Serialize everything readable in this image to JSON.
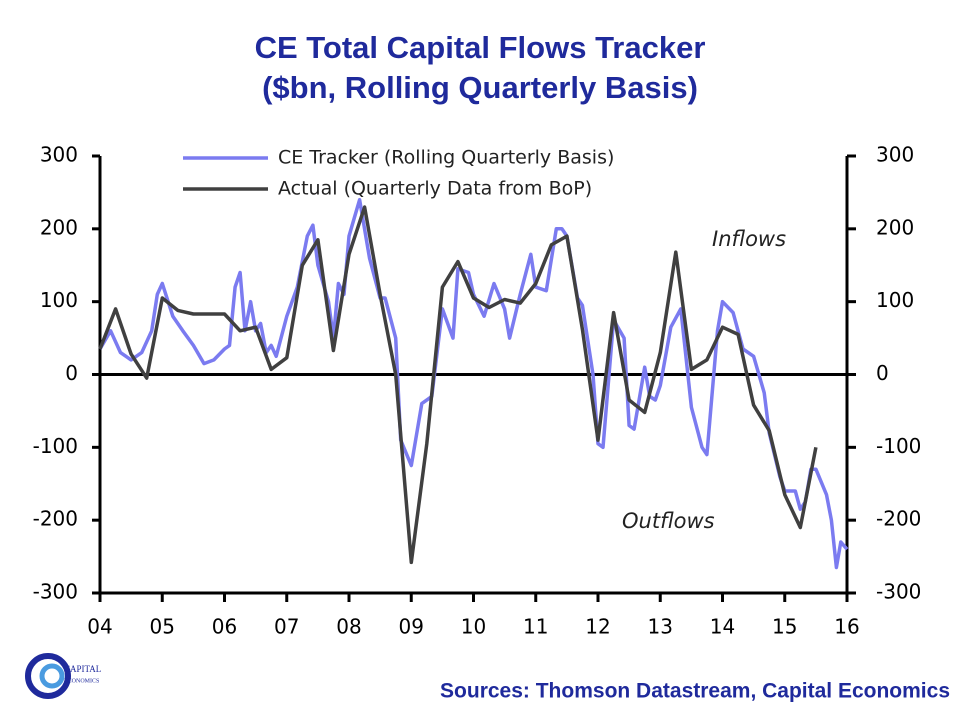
{
  "chart_data": {
    "type": "line",
    "title": [
      "CE Total Capital Flows Tracker",
      "($bn, Rolling Quarterly Basis)"
    ],
    "source": "Sources: Thomson Datastream, Capital Economics",
    "logo": [
      "CAPITAL",
      "ECONOMICS"
    ],
    "annotations": [
      "Inflows",
      "Outflows"
    ],
    "xlim": [
      2004,
      2016
    ],
    "xticks": [
      {
        "value": 2004,
        "label": "04"
      },
      {
        "value": 2005,
        "label": "05"
      },
      {
        "value": 2006,
        "label": "06"
      },
      {
        "value": 2007,
        "label": "07"
      },
      {
        "value": 2008,
        "label": "08"
      },
      {
        "value": 2009,
        "label": "09"
      },
      {
        "value": 2010,
        "label": "10"
      },
      {
        "value": 2011,
        "label": "11"
      },
      {
        "value": 2012,
        "label": "12"
      },
      {
        "value": 2013,
        "label": "13"
      },
      {
        "value": 2014,
        "label": "14"
      },
      {
        "value": 2015,
        "label": "15"
      },
      {
        "value": 2016,
        "label": "16"
      }
    ],
    "ylim": [
      -300,
      300
    ],
    "yticks": [
      -300,
      -200,
      -100,
      0,
      100,
      200,
      300
    ],
    "y2lim": [
      -300,
      300
    ],
    "y2ticks": [
      -300,
      -200,
      -100,
      0,
      100,
      200,
      300
    ],
    "series": [
      {
        "name": "CE Tracker (Rolling Quarterly Basis)",
        "color": "#7b7bf0",
        "x": [
          2004.0,
          2004.17,
          2004.33,
          2004.5,
          2004.67,
          2004.83,
          2004.92,
          2005.0,
          2005.17,
          2005.33,
          2005.5,
          2005.67,
          2005.83,
          2006.0,
          2006.08,
          2006.17,
          2006.25,
          2006.33,
          2006.42,
          2006.5,
          2006.58,
          2006.67,
          2006.75,
          2006.83,
          2007.0,
          2007.17,
          2007.33,
          2007.42,
          2007.5,
          2007.67,
          2007.75,
          2007.83,
          2007.92,
          2008.0,
          2008.17,
          2008.33,
          2008.5,
          2008.58,
          2008.75,
          2008.83,
          2009.0,
          2009.17,
          2009.33,
          2009.5,
          2009.67,
          2009.75,
          2009.92,
          2010.0,
          2010.17,
          2010.33,
          2010.5,
          2010.58,
          2010.75,
          2010.92,
          2011.0,
          2011.17,
          2011.33,
          2011.42,
          2011.5,
          2011.67,
          2011.75,
          2011.92,
          2012.0,
          2012.08,
          2012.25,
          2012.42,
          2012.5,
          2012.58,
          2012.75,
          2012.83,
          2012.92,
          2013.0,
          2013.17,
          2013.33,
          2013.5,
          2013.67,
          2013.75,
          2013.92,
          2014.0,
          2014.17,
          2014.33,
          2014.5,
          2014.67,
          2014.75,
          2014.92,
          2015.0,
          2015.17,
          2015.25,
          2015.33,
          2015.42,
          2015.5,
          2015.67,
          2015.75,
          2015.83,
          2015.9,
          2016.0
        ],
        "values": [
          35,
          60,
          30,
          20,
          30,
          60,
          110,
          125,
          80,
          60,
          40,
          15,
          20,
          35,
          40,
          120,
          140,
          60,
          100,
          60,
          70,
          30,
          40,
          25,
          80,
          120,
          190,
          205,
          150,
          100,
          50,
          125,
          110,
          190,
          240,
          160,
          105,
          105,
          50,
          -90,
          -125,
          -40,
          -30,
          90,
          50,
          145,
          140,
          110,
          80,
          125,
          90,
          50,
          110,
          165,
          120,
          115,
          200,
          200,
          190,
          105,
          95,
          0,
          -95,
          -100,
          75,
          50,
          -70,
          -75,
          10,
          -30,
          -35,
          -15,
          65,
          90,
          -45,
          -100,
          -110,
          60,
          100,
          85,
          35,
          25,
          -25,
          -80,
          -140,
          -160,
          -160,
          -185,
          -175,
          -130,
          -130,
          -165,
          -200,
          -265,
          -230,
          -240
        ]
      },
      {
        "name": "Actual (Quarterly Data from BoP)",
        "color": "#404040",
        "x": [
          2004.0,
          2004.25,
          2004.5,
          2004.75,
          2005.0,
          2005.25,
          2005.5,
          2006.0,
          2006.25,
          2006.5,
          2006.75,
          2007.0,
          2007.25,
          2007.5,
          2007.75,
          2008.0,
          2008.25,
          2008.5,
          2008.75,
          2009.0,
          2009.25,
          2009.5,
          2009.75,
          2010.0,
          2010.25,
          2010.5,
          2010.75,
          2011.0,
          2011.25,
          2011.5,
          2011.75,
          2012.0,
          2012.25,
          2012.5,
          2012.75,
          2013.0,
          2013.25,
          2013.5,
          2013.75,
          2014.0,
          2014.25,
          2014.5,
          2014.75,
          2015.0,
          2015.25,
          2015.5
        ],
        "values": [
          35,
          90,
          28,
          -5,
          105,
          88,
          83,
          83,
          60,
          65,
          7,
          23,
          150,
          185,
          33,
          165,
          230,
          110,
          0,
          -258,
          -95,
          120,
          155,
          105,
          92,
          103,
          98,
          125,
          178,
          190,
          62,
          -90,
          85,
          -35,
          -52,
          30,
          168,
          7,
          20,
          65,
          55,
          -42,
          -77,
          -165,
          -210,
          -100
        ]
      }
    ]
  }
}
